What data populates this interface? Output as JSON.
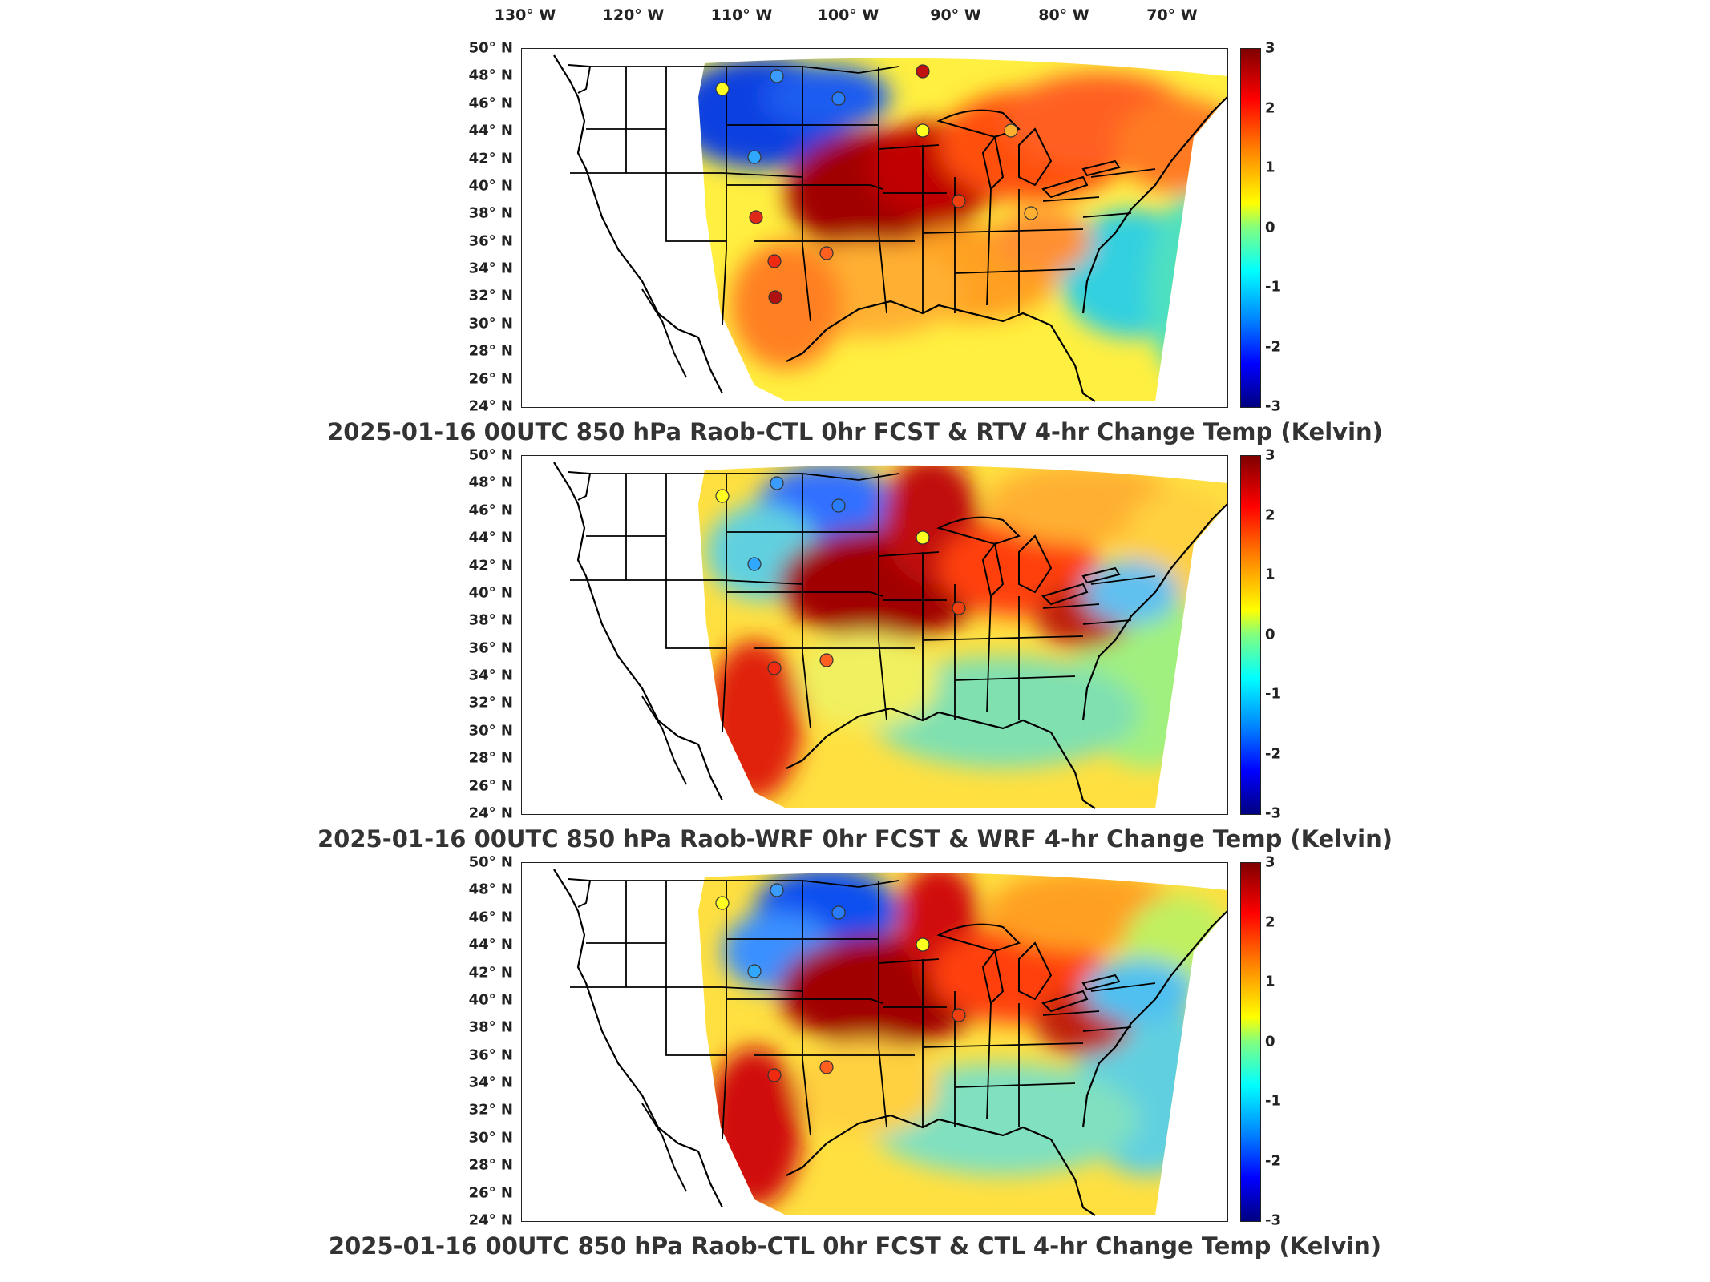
{
  "lon_labels": [
    {
      "deg": "130",
      "hemi": "W"
    },
    {
      "deg": "120",
      "hemi": "W"
    },
    {
      "deg": "110",
      "hemi": "W"
    },
    {
      "deg": "100",
      "hemi": "W"
    },
    {
      "deg": "90",
      "hemi": "W"
    },
    {
      "deg": "80",
      "hemi": "W"
    },
    {
      "deg": "70",
      "hemi": "W"
    }
  ],
  "lat_labels": [
    {
      "deg": "50",
      "hemi": "N"
    },
    {
      "deg": "48",
      "hemi": "N"
    },
    {
      "deg": "46",
      "hemi": "N"
    },
    {
      "deg": "44",
      "hemi": "N"
    },
    {
      "deg": "42",
      "hemi": "N"
    },
    {
      "deg": "40",
      "hemi": "N"
    },
    {
      "deg": "38",
      "hemi": "N"
    },
    {
      "deg": "36",
      "hemi": "N"
    },
    {
      "deg": "34",
      "hemi": "N"
    },
    {
      "deg": "32",
      "hemi": "N"
    },
    {
      "deg": "30",
      "hemi": "N"
    },
    {
      "deg": "28",
      "hemi": "N"
    },
    {
      "deg": "26",
      "hemi": "N"
    },
    {
      "deg": "24",
      "hemi": "N"
    }
  ],
  "colorbar": {
    "ticks": [
      "3",
      "2",
      "1",
      "0",
      "-1",
      "-2",
      "-3"
    ],
    "range": [
      -3,
      3
    ],
    "colormap": "jet",
    "colors": [
      "#800000",
      "#ff0000",
      "#ff8000",
      "#ffff00",
      "#80ff80",
      "#00ffff",
      "#0080ff",
      "#0000ff",
      "#000080"
    ]
  },
  "panels": [
    {
      "title": "2025-01-16 00UTC 850 hPa Raob-CTL 0hr FCST & RTV 4-hr Change Temp (Kelvin)"
    },
    {
      "title": "2025-01-16 00UTC 850 hPa Raob-WRF 0hr FCST & WRF 4-hr Change Temp (Kelvin)"
    },
    {
      "title": "2025-01-16 00UTC 850 hPa Raob-CTL 0hr FCST & CTL 4-hr Change Temp (Kelvin)"
    }
  ]
}
